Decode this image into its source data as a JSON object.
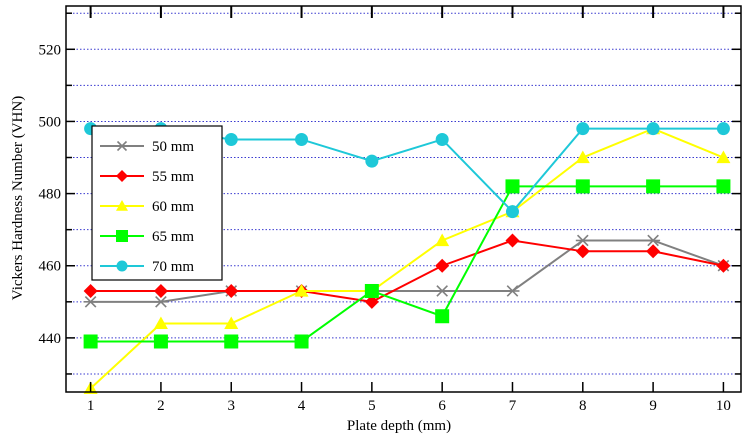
{
  "chart_data": {
    "type": "line",
    "title": "",
    "xlabel": "Plate depth (mm)",
    "ylabel": "Vickers Hardness Number (VHN)",
    "x": [
      1,
      2,
      3,
      4,
      5,
      6,
      7,
      8,
      9,
      10
    ],
    "xlim": [
      0.65,
      10.25
    ],
    "ylim": [
      425,
      532
    ],
    "yticks": [
      440,
      460,
      480,
      500,
      520
    ],
    "grid": "horizontal dotted blue every 10 units",
    "legend_position": "left, inside plot",
    "series": [
      {
        "name": "50 mm",
        "color": "#808080",
        "marker": "asterisk",
        "values": [
          450,
          450,
          453,
          453,
          453,
          453,
          453,
          467,
          467,
          460
        ]
      },
      {
        "name": "55 mm",
        "color": "#ff0000",
        "marker": "diamond",
        "values": [
          453,
          453,
          453,
          453,
          450,
          460,
          467,
          464,
          464,
          460
        ]
      },
      {
        "name": "60 mm",
        "color": "#ffff00",
        "marker": "triangle",
        "values": [
          426,
          444,
          444,
          453,
          453,
          467,
          475,
          490,
          498,
          490
        ]
      },
      {
        "name": "65 mm",
        "color": "#00ff00",
        "marker": "square",
        "values": [
          439,
          439,
          439,
          439,
          453,
          446,
          482,
          482,
          482,
          482
        ]
      },
      {
        "name": "70 mm",
        "color": "#1ec8d8",
        "marker": "circle",
        "values": [
          498,
          498,
          495,
          495,
          489,
          495,
          475,
          498,
          498,
          498
        ]
      }
    ]
  }
}
